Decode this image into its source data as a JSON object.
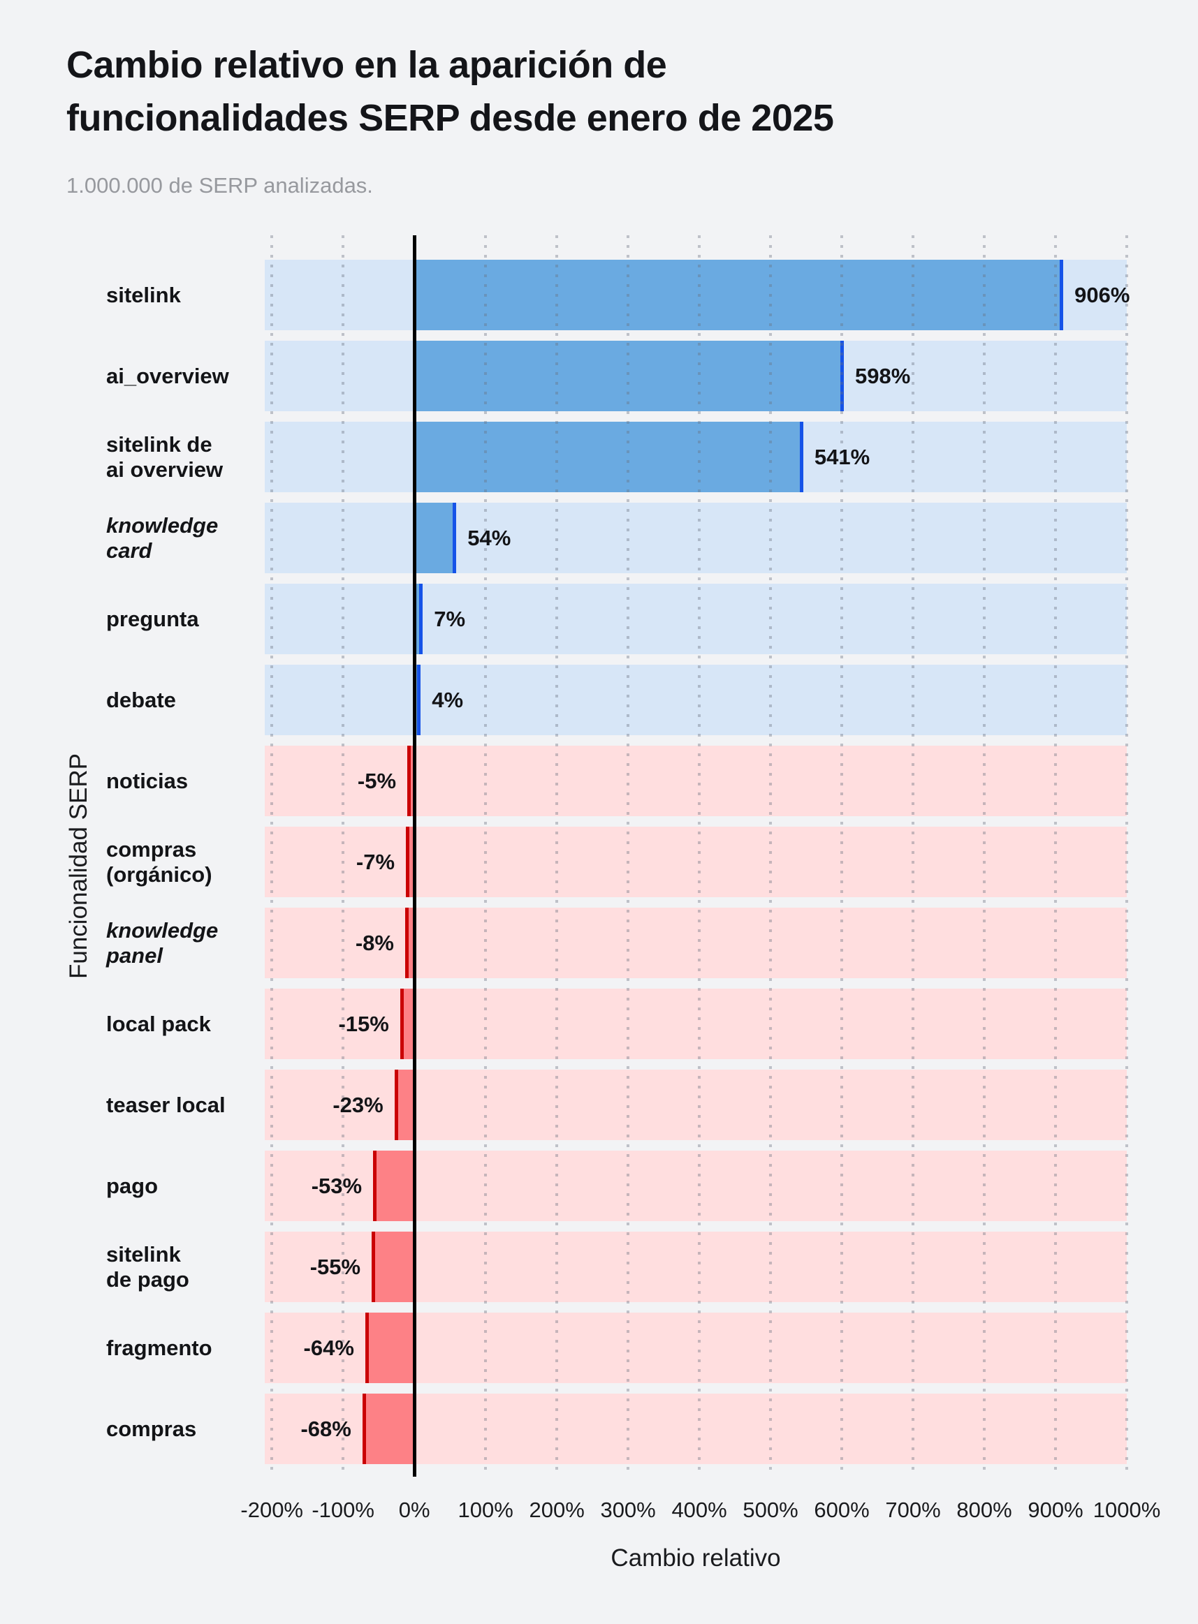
{
  "header": {
    "title_line1": "Cambio relativo en la aparición de",
    "title_line2": "funcionalidades SERP desde enero de 2025",
    "subtitle": "1.000.000 de SERP analizadas."
  },
  "chart_data": {
    "type": "bar",
    "orientation": "horizontal",
    "title": "Cambio relativo en la aparición de funcionalidades SERP desde enero de 2025",
    "subtitle": "1.000.000 de SERP analizadas.",
    "xlabel": "Cambio relativo",
    "ylabel": "Funcionalidad SERP",
    "xlim": [
      -210,
      1000
    ],
    "grid": "dotted-vertical-every-100",
    "legend": "none",
    "x_ticks": [
      -200,
      -100,
      0,
      100,
      200,
      300,
      400,
      500,
      600,
      700,
      800,
      900,
      1000
    ],
    "x_tick_labels": [
      "-200%",
      "-100%",
      "0%",
      "100%",
      "200%",
      "300%",
      "400%",
      "500%",
      "600%",
      "700%",
      "800%",
      "900%",
      "1000%"
    ],
    "categories": [
      "sitelink",
      "ai_overview",
      "sitelink de\nai overview",
      "knowledge\ncard",
      "pregunta",
      "debate",
      "noticias",
      "compras\n(orgánico)",
      "knowledge\npanel",
      "local pack",
      "teaser local",
      "pago",
      "sitelink\nde pago",
      "fragmento",
      "compras"
    ],
    "values": [
      906,
      598,
      541,
      54,
      7,
      4,
      -5,
      -7,
      -8,
      -15,
      -23,
      -53,
      -55,
      -64,
      -68
    ],
    "rows": [
      {
        "label": "sitelink",
        "italic": false,
        "value": 906,
        "value_label": "906%"
      },
      {
        "label": "ai_overview",
        "italic": false,
        "value": 598,
        "value_label": "598%"
      },
      {
        "label": "sitelink de\nai overview",
        "italic": false,
        "value": 541,
        "value_label": "541%"
      },
      {
        "label": "knowledge\ncard",
        "italic": true,
        "value": 54,
        "value_label": "54%"
      },
      {
        "label": "pregunta",
        "italic": false,
        "value": 7,
        "value_label": "7%"
      },
      {
        "label": "debate",
        "italic": false,
        "value": 4,
        "value_label": "4%"
      },
      {
        "label": "noticias",
        "italic": false,
        "value": -5,
        "value_label": "-5%"
      },
      {
        "label": "compras\n(orgánico)",
        "italic": false,
        "value": -7,
        "value_label": "-7%"
      },
      {
        "label": "knowledge\npanel",
        "italic": true,
        "value": -8,
        "value_label": "-8%"
      },
      {
        "label": "local pack",
        "italic": false,
        "value": -15,
        "value_label": "-15%"
      },
      {
        "label": "teaser local",
        "italic": false,
        "value": -23,
        "value_label": "-23%"
      },
      {
        "label": "pago",
        "italic": false,
        "value": -53,
        "value_label": "-53%"
      },
      {
        "label": "sitelink\nde pago",
        "italic": false,
        "value": -55,
        "value_label": "-55%"
      },
      {
        "label": "fragmento",
        "italic": false,
        "value": -64,
        "value_label": "-64%"
      },
      {
        "label": "compras",
        "italic": false,
        "value": -68,
        "value_label": "-68%"
      }
    ],
    "colors": {
      "page_background": "#f2f3f5",
      "positive_bar": "#6aaae1",
      "positive_edge": "#1553e8",
      "positive_track": "#d7e6f7",
      "negative_bar": "#fd8186",
      "negative_edge": "#ca0104",
      "negative_track": "#ffdedf",
      "zero_line": "#000000",
      "title_text": "#141519",
      "subtitle_text": "#97999e"
    }
  }
}
